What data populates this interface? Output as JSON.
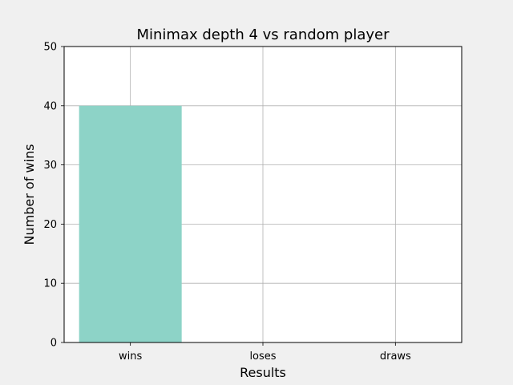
{
  "chart_data": {
    "type": "bar",
    "title": "Minimax depth 4 vs random player",
    "xlabel": "Results",
    "ylabel": "Number of wins",
    "categories": [
      "wins",
      "loses",
      "draws"
    ],
    "values": [
      40,
      0,
      0
    ],
    "ylim": [
      0,
      50
    ],
    "yticks": [
      0,
      10,
      20,
      30,
      40,
      50
    ],
    "grid": true,
    "bar_color": "#8dd3c7",
    "background_color": "#f0f0f0",
    "axes_color": "#ffffff"
  }
}
